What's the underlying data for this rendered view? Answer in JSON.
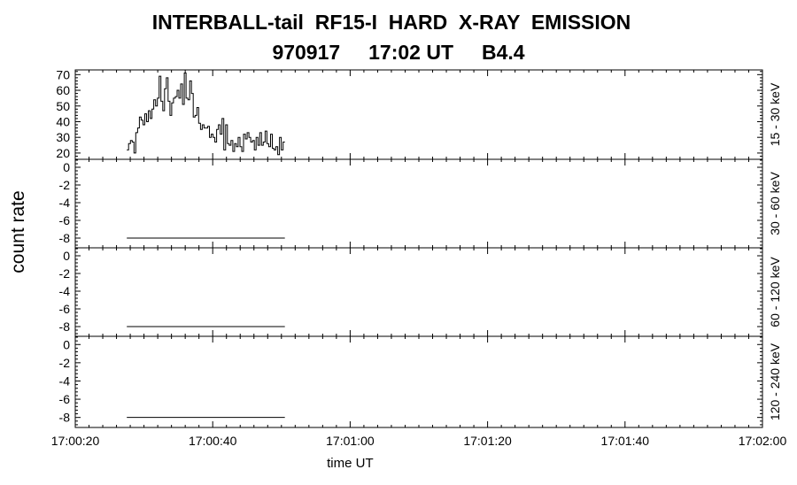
{
  "chart_data": {
    "type": "line",
    "title_line1": "INTERBALL-tail  RF15-I  HARD  X-RAY  EMISSION",
    "title_line2": "970917     17:02 UT     B4.4",
    "ylabel": "count rate",
    "xlabel": "time UT",
    "xtick_labels": [
      "17:00:20",
      "17:00:40",
      "17:01:00",
      "17:01:20",
      "17:01:40",
      "17:02:00"
    ],
    "xlim_seconds": [
      20,
      120
    ],
    "panels": [
      {
        "band_label": "15 - 30 keV",
        "ylim": [
          16,
          73
        ],
        "ytick_values": [
          20,
          30,
          40,
          50,
          60,
          70
        ],
        "ytick_labels": [
          "20",
          "30",
          "40",
          "50",
          "60",
          "70"
        ],
        "t_start": 27.5,
        "t_end": 50.5,
        "values": [
          22,
          26,
          28,
          27,
          20,
          33,
          36,
          43,
          41,
          38,
          45,
          40,
          47,
          42,
          48,
          54,
          50,
          55,
          69,
          53,
          47,
          61,
          68,
          53,
          44,
          52,
          55,
          56,
          60,
          55,
          64,
          51,
          71,
          55,
          54,
          66,
          58,
          43,
          44,
          49,
          39,
          35,
          38,
          36,
          36,
          37,
          30,
          32,
          30,
          27,
          35,
          38,
          32,
          42,
          22,
          38,
          26,
          25,
          28,
          21,
          26,
          24,
          30,
          24,
          21,
          32,
          29,
          33,
          30,
          27,
          28,
          22,
          30,
          25,
          33,
          25,
          27,
          34,
          26,
          24,
          32,
          23,
          22,
          24,
          19,
          30,
          22,
          27
        ]
      },
      {
        "band_label": "30 - 60 keV",
        "ylim": [
          -9.1,
          0.9
        ],
        "ytick_values": [
          0,
          -2,
          -4,
          -6,
          -8
        ],
        "ytick_labels": [
          "0",
          "-2",
          "-4",
          "-6",
          "-8"
        ],
        "t_start": 27.5,
        "t_end": 50.5,
        "constant_value": -8
      },
      {
        "band_label": "60 - 120 keV",
        "ylim": [
          -9.1,
          0.9
        ],
        "ytick_values": [
          0,
          -2,
          -4,
          -6,
          -8
        ],
        "ytick_labels": [
          "0",
          "-2",
          "-4",
          "-6",
          "-8"
        ],
        "t_start": 27.5,
        "t_end": 50.5,
        "constant_value": -8
      },
      {
        "band_label": "120 - 240 keV",
        "ylim": [
          -9.1,
          0.9
        ],
        "ytick_values": [
          0,
          -2,
          -4,
          -6,
          -8
        ],
        "ytick_labels": [
          "0",
          "-2",
          "-4",
          "-6",
          "-8"
        ],
        "t_start": 27.5,
        "t_end": 50.5,
        "constant_value": -8
      }
    ]
  }
}
